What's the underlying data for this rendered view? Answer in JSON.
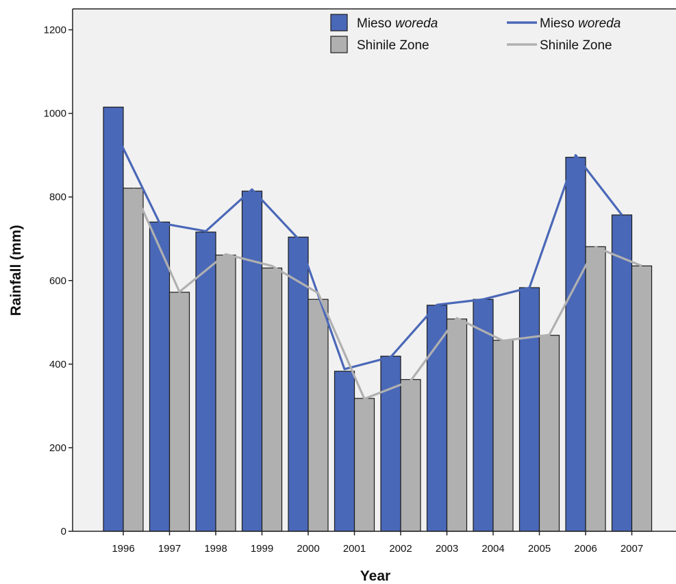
{
  "chart_data": {
    "type": "bar",
    "title": "",
    "xlabel": "Year",
    "ylabel": "Rainfall (mm)",
    "ylim": [
      0,
      1250
    ],
    "yticks": [
      0,
      200,
      400,
      600,
      800,
      1000,
      1200
    ],
    "categories": [
      "1996",
      "1997",
      "1998",
      "1999",
      "2000",
      "2001",
      "2002",
      "2003",
      "2004",
      "2005",
      "2006",
      "2007"
    ],
    "series": [
      {
        "name": "Mieso woreda",
        "kind": "bar",
        "color": "#4a68b8",
        "values": [
          1015,
          740,
          716,
          814,
          704,
          383,
          419,
          541,
          555,
          583,
          895,
          757
        ]
      },
      {
        "name": "Shinile Zone",
        "kind": "bar",
        "color": "#b0b0b0",
        "values": [
          821,
          572,
          661,
          630,
          555,
          318,
          363,
          508,
          457,
          469,
          681,
          635
        ]
      },
      {
        "name": "Mieso woreda",
        "kind": "line",
        "color": "#4a68b8",
        "values": [
          965,
          738,
          718,
          818,
          700,
          388,
          417,
          542,
          555,
          583,
          900,
          757
        ]
      },
      {
        "name": "Shinile Zone",
        "kind": "line",
        "color": "#b0b0b0",
        "values": [
          820,
          573,
          663,
          635,
          570,
          317,
          360,
          510,
          456,
          470,
          680,
          635
        ]
      }
    ],
    "legend": {
      "position": "top-right",
      "entries": [
        {
          "prefix": "Mieso ",
          "italic": "woreda",
          "kind": "bar",
          "color": "#4a68b8"
        },
        {
          "prefix": "Shinile Zone",
          "italic": "",
          "kind": "bar",
          "color": "#b0b0b0"
        },
        {
          "prefix": "Mieso ",
          "italic": "woreda",
          "kind": "line",
          "color": "#4a68b8"
        },
        {
          "prefix": "Shinile Zone",
          "italic": "",
          "kind": "line",
          "color": "#b0b0b0"
        }
      ]
    },
    "grid": false,
    "plot_background": "#f1f1f1"
  }
}
